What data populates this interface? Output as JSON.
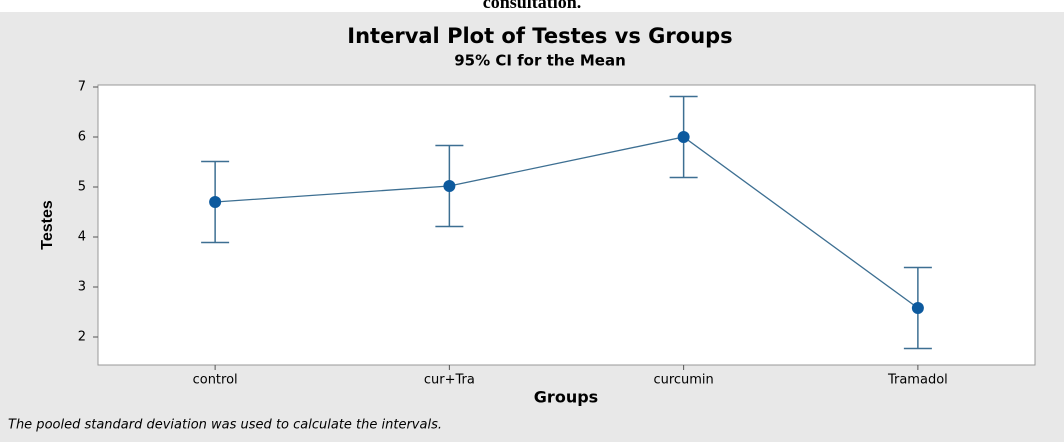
{
  "chart_data": {
    "type": "interval",
    "header": "consultation.",
    "title": "Interval Plot of Testes vs Groups",
    "subtitle": "95% CI for the Mean",
    "x_label": "Groups",
    "y_label": "Testes",
    "footnote": "The pooled standard deviation was used to calculate the intervals.",
    "categories": [
      "control",
      "cur+Tra",
      "curcumin",
      "Tramadol"
    ],
    "values": [
      4.7,
      5.02,
      6.0,
      2.58
    ],
    "errors": [
      0.81,
      0.81,
      0.81,
      0.81
    ],
    "color": "#0d5a9e",
    "line_color": "#3d6f92",
    "ylim": [
      1.44,
      7.04
    ],
    "yticks": [
      2,
      3,
      4,
      5,
      6,
      7
    ]
  }
}
